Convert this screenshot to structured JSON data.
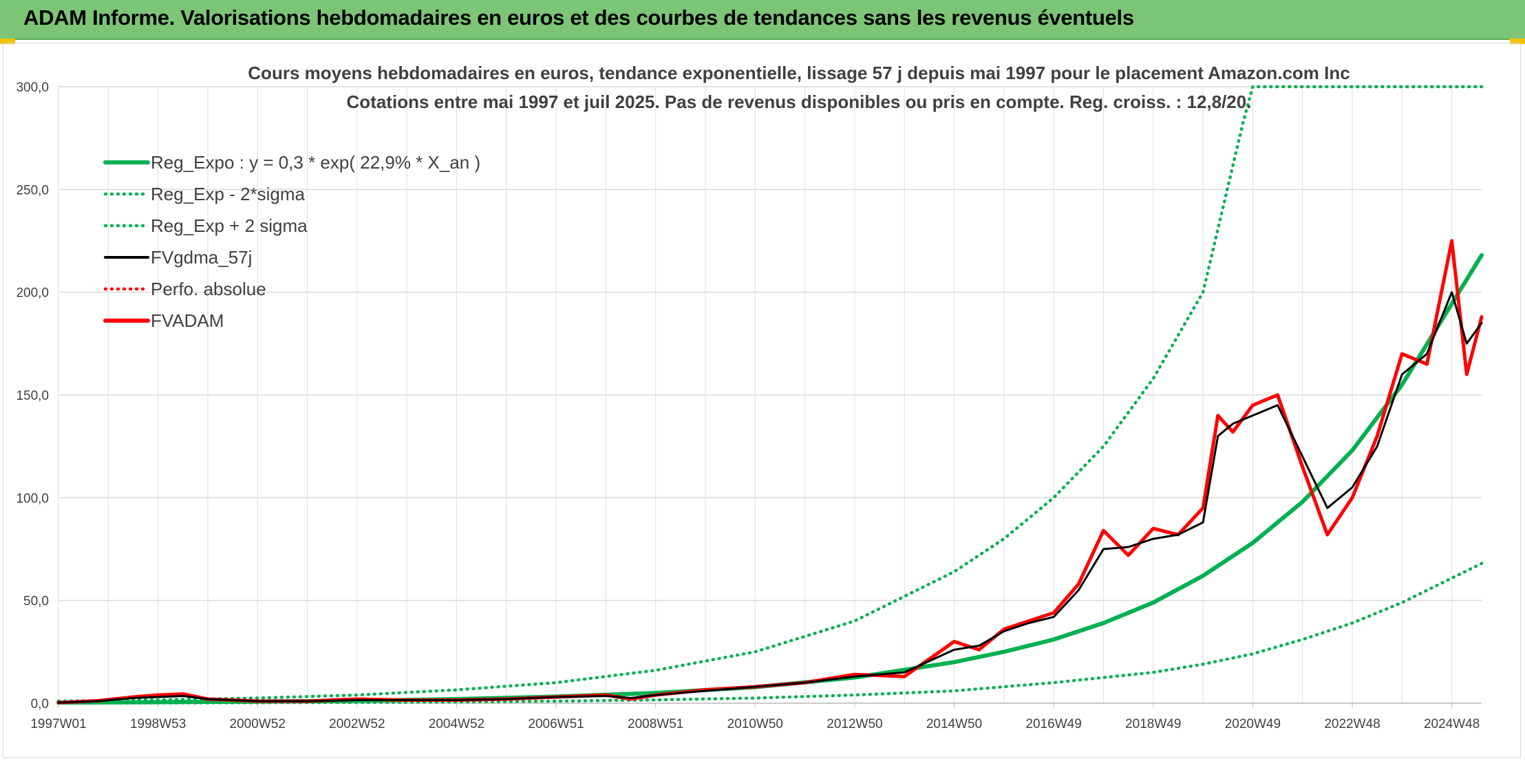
{
  "header": {
    "title": "ADAM Informe. Valorisations hebdomadaires en euros et des courbes de tendances sans les revenus éventuels"
  },
  "chart_data": {
    "type": "line",
    "title": "Cours moyens hebdomadaires en euros, tendance exponentielle, lissage 57 j depuis mai 1997 pour le placement Amazon.com Inc",
    "subtitle": "Cotations entre mai 1997 et juil 2025. Pas de revenus disponibles ou pris en compte. Reg. croiss. : 12,8/20.",
    "xlabel": "",
    "ylabel": "",
    "ylim": [
      0,
      300
    ],
    "y_ticks": [
      "0,0",
      "50,0",
      "100,0",
      "150,0",
      "200,0",
      "250,0",
      "300,0"
    ],
    "x_tick_labels": [
      "1997W01",
      "1998W53",
      "2000W52",
      "2002W52",
      "2004W52",
      "2006W51",
      "2008W51",
      "2010W50",
      "2012W50",
      "2014W50",
      "2016W49",
      "2018W49",
      "2020W49",
      "2022W48",
      "2024W48"
    ],
    "x_tick_years": [
      1997.0,
      1999.0,
      2001.0,
      2003.0,
      2005.0,
      2007.0,
      2009.0,
      2011.0,
      2013.0,
      2015.0,
      2017.0,
      2019.0,
      2021.0,
      2023.0,
      2025.0
    ],
    "xlim_years": [
      1997.0,
      2025.6
    ],
    "grid": true,
    "legend_position": "top-left",
    "legend": [
      {
        "name": "Reg_Expo : y = 0,3 * exp( 22,9% *  X_an )",
        "color": "#00b050",
        "style": "solid-thick"
      },
      {
        "name": "Reg_Exp - 2*sigma",
        "color": "#00b050",
        "style": "dotted"
      },
      {
        "name": "Reg_Exp + 2 sigma",
        "color": "#00b050",
        "style": "dotted"
      },
      {
        "name": "FVgdma_57j",
        "color": "#000000",
        "style": "solid"
      },
      {
        "name": "Perfo. absolue",
        "color": "#ff0000",
        "style": "dotted"
      },
      {
        "name": "FVADAM",
        "color": "#ff0000",
        "style": "solid-thick"
      }
    ],
    "series": [
      {
        "name": "Reg_Expo : y = 0,3 * exp( 22,9% *  X_an )",
        "color": "#00b050",
        "x": [
          1997.0,
          1999.0,
          2001.0,
          2003.0,
          2005.0,
          2007.0,
          2009.0,
          2011.0,
          2013.0,
          2015.0,
          2016.0,
          2017.0,
          2018.0,
          2019.0,
          2020.0,
          2021.0,
          2022.0,
          2023.0,
          2024.0,
          2025.6
        ],
        "values": [
          0.3,
          0.5,
          0.8,
          1.2,
          2.0,
          3.2,
          5.0,
          7.8,
          12.5,
          20.0,
          25.0,
          31.0,
          39.0,
          49.0,
          62.0,
          78.0,
          98.0,
          123.0,
          155.0,
          218.0
        ]
      },
      {
        "name": "Reg_Exp - 2*sigma",
        "color": "#00b050",
        "x": [
          1997.0,
          1999.0,
          2001.0,
          2003.0,
          2005.0,
          2007.0,
          2009.0,
          2011.0,
          2013.0,
          2015.0,
          2017.0,
          2019.0,
          2020.0,
          2021.0,
          2022.0,
          2023.0,
          2024.0,
          2025.6
        ],
        "values": [
          0.1,
          0.15,
          0.25,
          0.4,
          0.6,
          1.0,
          1.6,
          2.5,
          4.0,
          6.0,
          10.0,
          15.0,
          19.0,
          24.0,
          31.0,
          39.0,
          49.0,
          68.0
        ]
      },
      {
        "name": "Reg_Exp + 2 sigma",
        "color": "#00b050",
        "x": [
          1997.0,
          1999.0,
          2001.0,
          2003.0,
          2005.0,
          2007.0,
          2009.0,
          2011.0,
          2013.0,
          2015.0,
          2016.0,
          2017.0,
          2018.0,
          2019.0,
          2020.0,
          2020.8,
          2021.0,
          2022.0,
          2023.0,
          2024.0,
          2025.6
        ],
        "values": [
          1.0,
          1.6,
          2.5,
          4.0,
          6.5,
          10.0,
          16.0,
          25.0,
          40.0,
          64.0,
          80.0,
          100.0,
          125.0,
          158.0,
          200.0,
          282.0,
          300.0,
          300.0,
          300.0,
          300.0,
          300.0
        ]
      },
      {
        "name": "FVgdma_57j",
        "color": "#000000",
        "x": [
          1997.0,
          1997.8,
          1998.5,
          1999.0,
          1999.5,
          2000.0,
          2001.0,
          2002.0,
          2003.0,
          2004.0,
          2005.0,
          2006.0,
          2007.0,
          2008.0,
          2008.5,
          2009.0,
          2010.0,
          2011.0,
          2012.0,
          2013.0,
          2014.0,
          2015.0,
          2015.5,
          2016.0,
          2016.5,
          2017.0,
          2017.5,
          2018.0,
          2018.5,
          2019.0,
          2019.5,
          2020.0,
          2020.3,
          2020.6,
          2021.0,
          2021.5,
          2022.0,
          2022.5,
          2023.0,
          2023.5,
          2024.0,
          2024.5,
          2025.0,
          2025.3,
          2025.6
        ],
        "values": [
          0.3,
          1.0,
          2.5,
          3.0,
          3.5,
          2.0,
          1.0,
          1.0,
          1.5,
          1.5,
          1.5,
          2.0,
          3.0,
          3.5,
          2.5,
          4.0,
          6.0,
          8.0,
          10.0,
          13.0,
          15.0,
          26.0,
          28.0,
          35.0,
          39.0,
          42.0,
          55.0,
          75.0,
          76.0,
          80.0,
          82.0,
          88.0,
          130.0,
          136.0,
          140.0,
          145.0,
          120.0,
          95.0,
          105.0,
          125.0,
          160.0,
          170.0,
          200.0,
          175.0,
          185.0
        ]
      },
      {
        "name": "FVADAM",
        "color": "#ff0000",
        "x": [
          1997.0,
          1997.8,
          1998.5,
          1999.0,
          1999.5,
          2000.0,
          2001.0,
          2002.0,
          2003.0,
          2004.0,
          2005.0,
          2006.0,
          2007.0,
          2008.0,
          2008.5,
          2009.0,
          2010.0,
          2011.0,
          2012.0,
          2013.0,
          2014.0,
          2015.0,
          2015.5,
          2016.0,
          2016.5,
          2017.0,
          2017.5,
          2018.0,
          2018.5,
          2019.0,
          2019.5,
          2020.0,
          2020.3,
          2020.6,
          2021.0,
          2021.5,
          2022.0,
          2022.5,
          2023.0,
          2023.5,
          2024.0,
          2024.5,
          2025.0,
          2025.3,
          2025.6
        ],
        "values": [
          0.3,
          1.2,
          3.0,
          4.0,
          4.5,
          2.0,
          1.0,
          1.0,
          2.0,
          1.5,
          1.5,
          2.0,
          3.0,
          4.0,
          2.0,
          4.0,
          6.5,
          8.0,
          10.0,
          14.0,
          13.0,
          30.0,
          26.0,
          36.0,
          40.0,
          44.0,
          58.0,
          84.0,
          72.0,
          85.0,
          82.0,
          95.0,
          140.0,
          132.0,
          145.0,
          150.0,
          115.0,
          82.0,
          100.0,
          130.0,
          170.0,
          165.0,
          225.0,
          160.0,
          188.0
        ]
      }
    ]
  }
}
